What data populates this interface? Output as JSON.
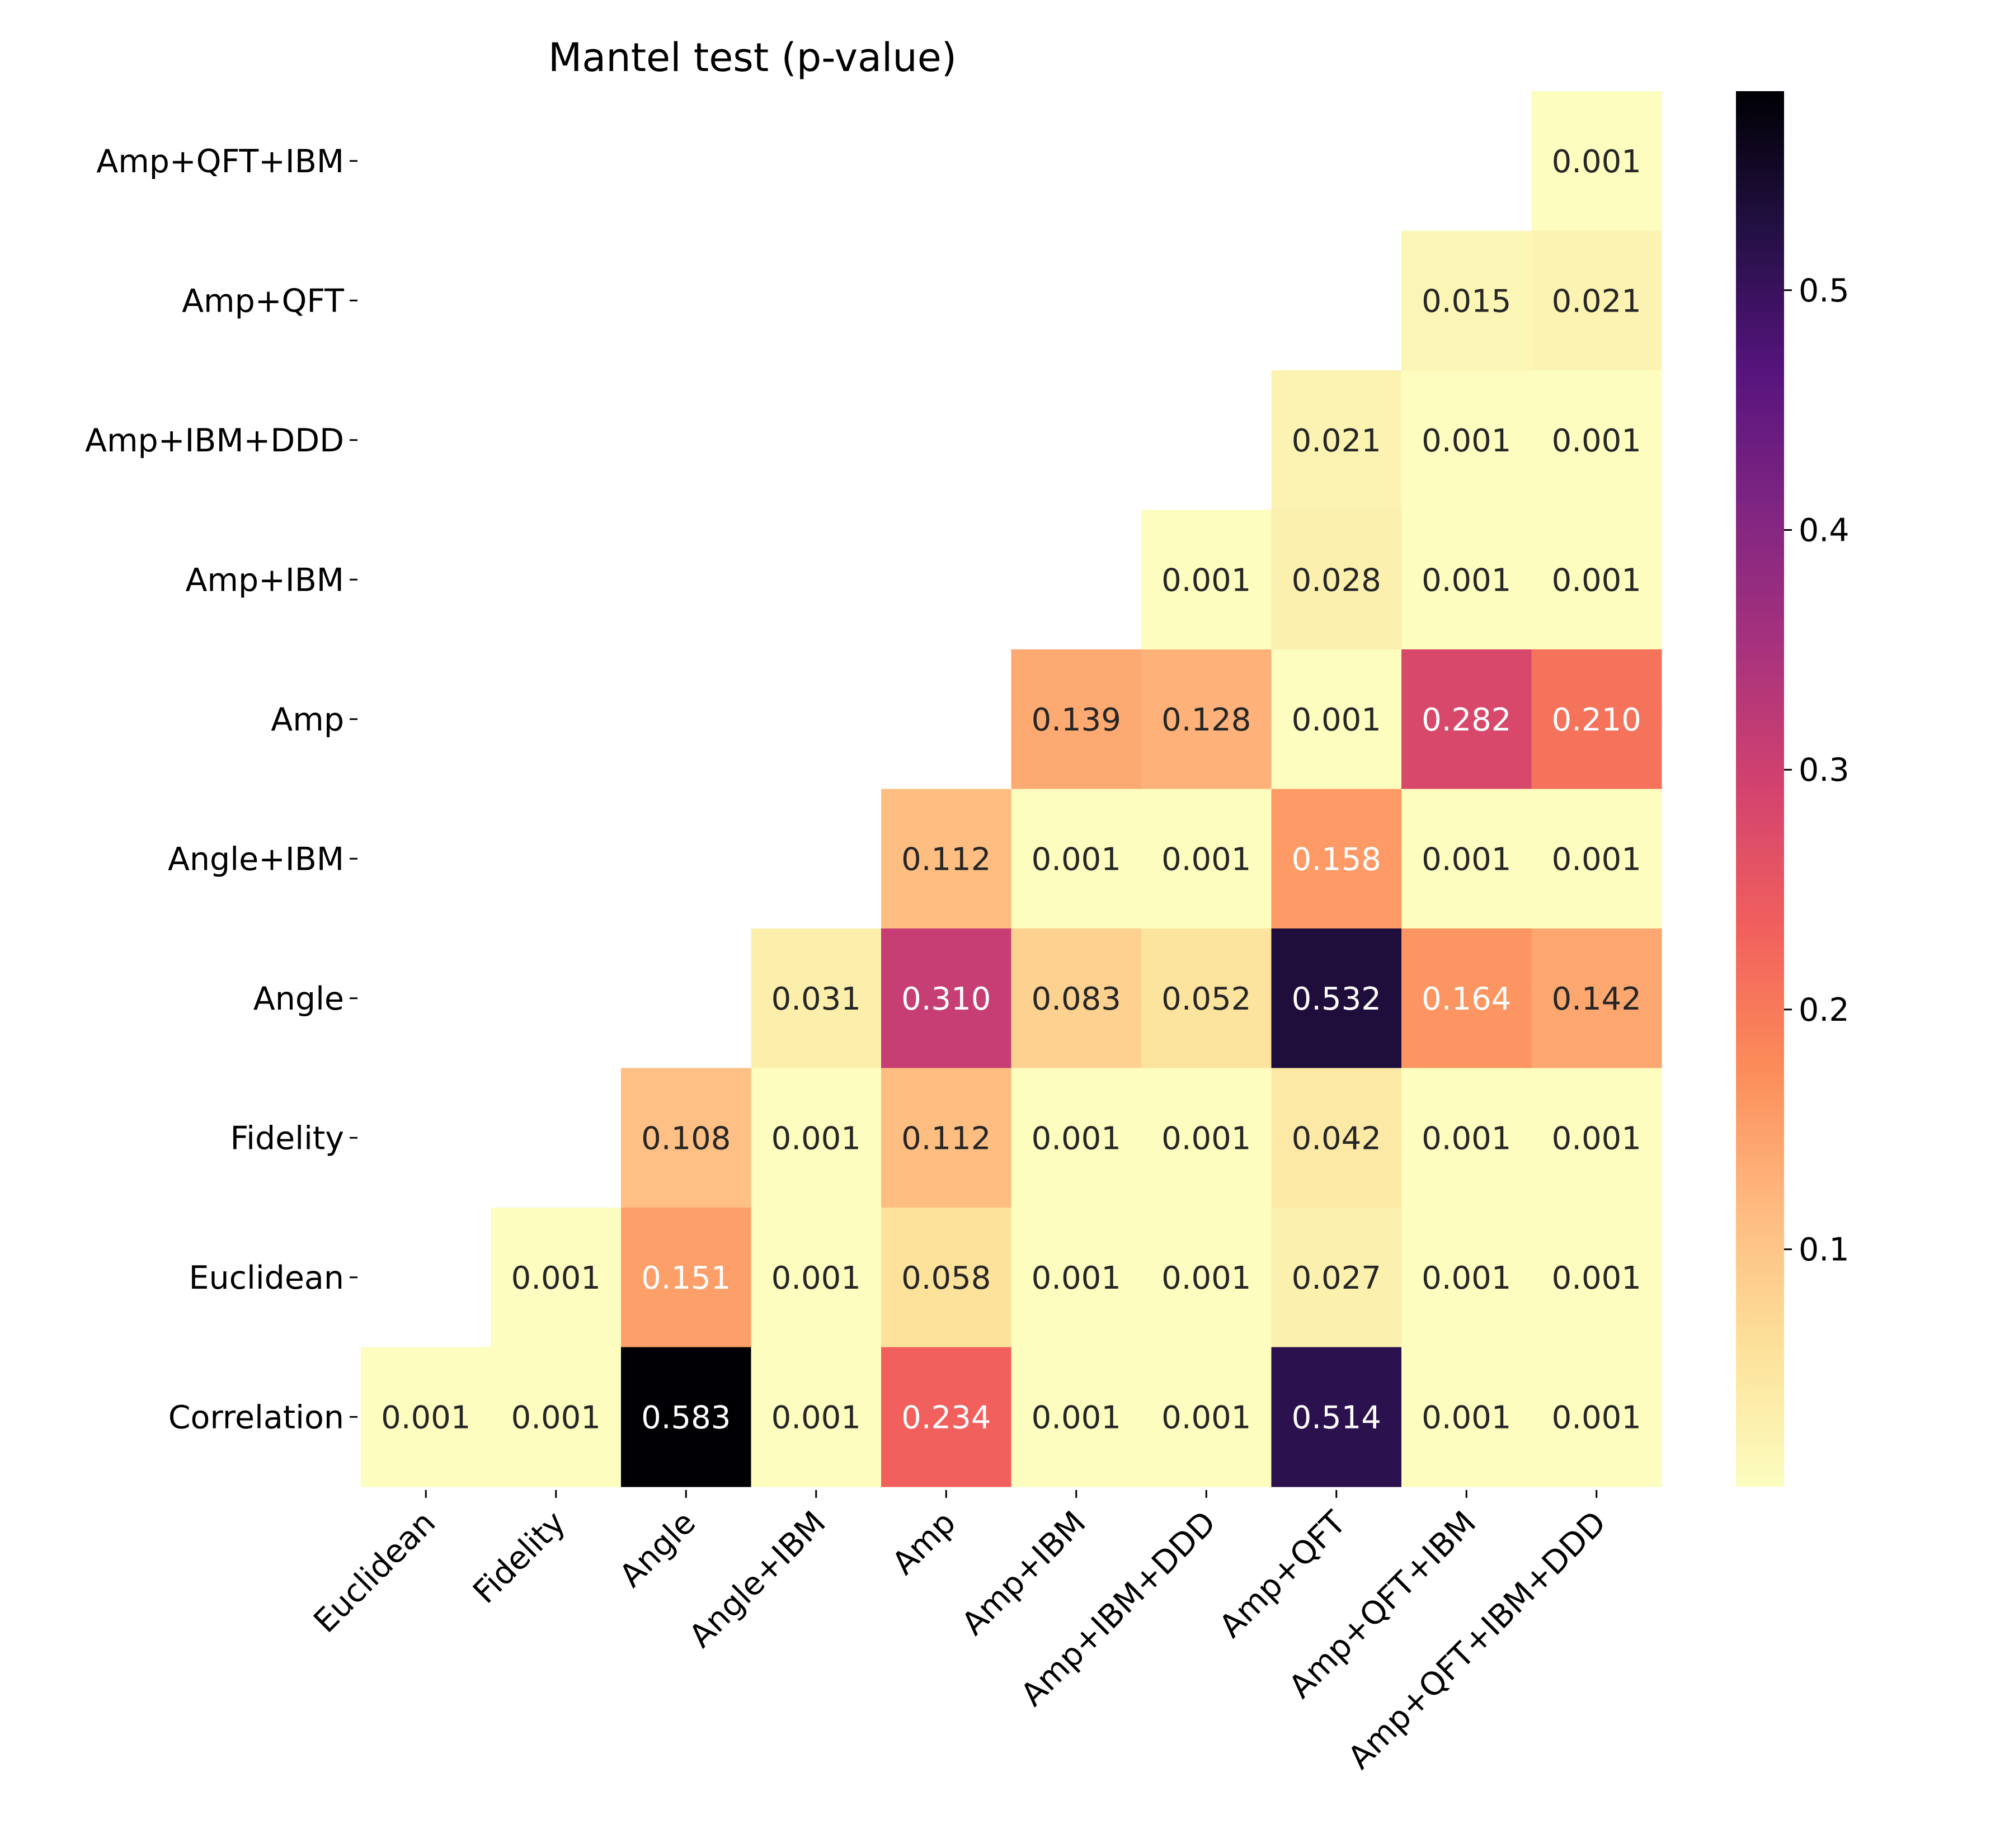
{
  "chart_data": {
    "type": "heatmap",
    "title": "Mantel test (p-value)",
    "xlabel": "",
    "ylabel": "",
    "x_categories": [
      "Euclidean",
      "Fidelity",
      "Angle",
      "Angle+IBM",
      "Amp",
      "Amp+IBM",
      "Amp+IBM+DDD",
      "Amp+QFT",
      "Amp+QFT+IBM",
      "Amp+QFT+IBM+DDD"
    ],
    "y_categories": [
      "Amp+QFT+IBM",
      "Amp+QFT",
      "Amp+IBM+DDD",
      "Amp+IBM",
      "Amp",
      "Angle+IBM",
      "Angle",
      "Fidelity",
      "Euclidean",
      "Correlation"
    ],
    "values": [
      [
        null,
        null,
        null,
        null,
        null,
        null,
        null,
        null,
        null,
        0.001
      ],
      [
        null,
        null,
        null,
        null,
        null,
        null,
        null,
        null,
        0.015,
        0.021
      ],
      [
        null,
        null,
        null,
        null,
        null,
        null,
        null,
        0.021,
        0.001,
        0.001
      ],
      [
        null,
        null,
        null,
        null,
        null,
        null,
        0.001,
        0.028,
        0.001,
        0.001
      ],
      [
        null,
        null,
        null,
        null,
        null,
        0.139,
        0.128,
        0.001,
        0.282,
        0.21
      ],
      [
        null,
        null,
        null,
        null,
        0.112,
        0.001,
        0.001,
        0.158,
        0.001,
        0.001
      ],
      [
        null,
        null,
        null,
        0.031,
        0.31,
        0.083,
        0.052,
        0.532,
        0.164,
        0.142
      ],
      [
        null,
        null,
        0.108,
        0.001,
        0.112,
        0.001,
        0.001,
        0.042,
        0.001,
        0.001
      ],
      [
        null,
        0.001,
        0.151,
        0.001,
        0.058,
        0.001,
        0.001,
        0.027,
        0.001,
        0.001
      ],
      [
        0.001,
        0.001,
        0.583,
        0.001,
        0.234,
        0.001,
        0.001,
        0.514,
        0.001,
        0.001
      ]
    ],
    "value_format": "3 decimals",
    "colormap": "magma_r",
    "color_range": [
      0.001,
      0.583
    ],
    "colorbar": {
      "ticks": [
        0.1,
        0.2,
        0.3,
        0.4,
        0.5
      ],
      "tick_labels": [
        "0.1",
        "0.2",
        "0.3",
        "0.4",
        "0.5"
      ],
      "placement": "right"
    },
    "annotation_text_colors": {
      "dark": "#262626",
      "light": "#ffffff"
    },
    "grid": false
  }
}
